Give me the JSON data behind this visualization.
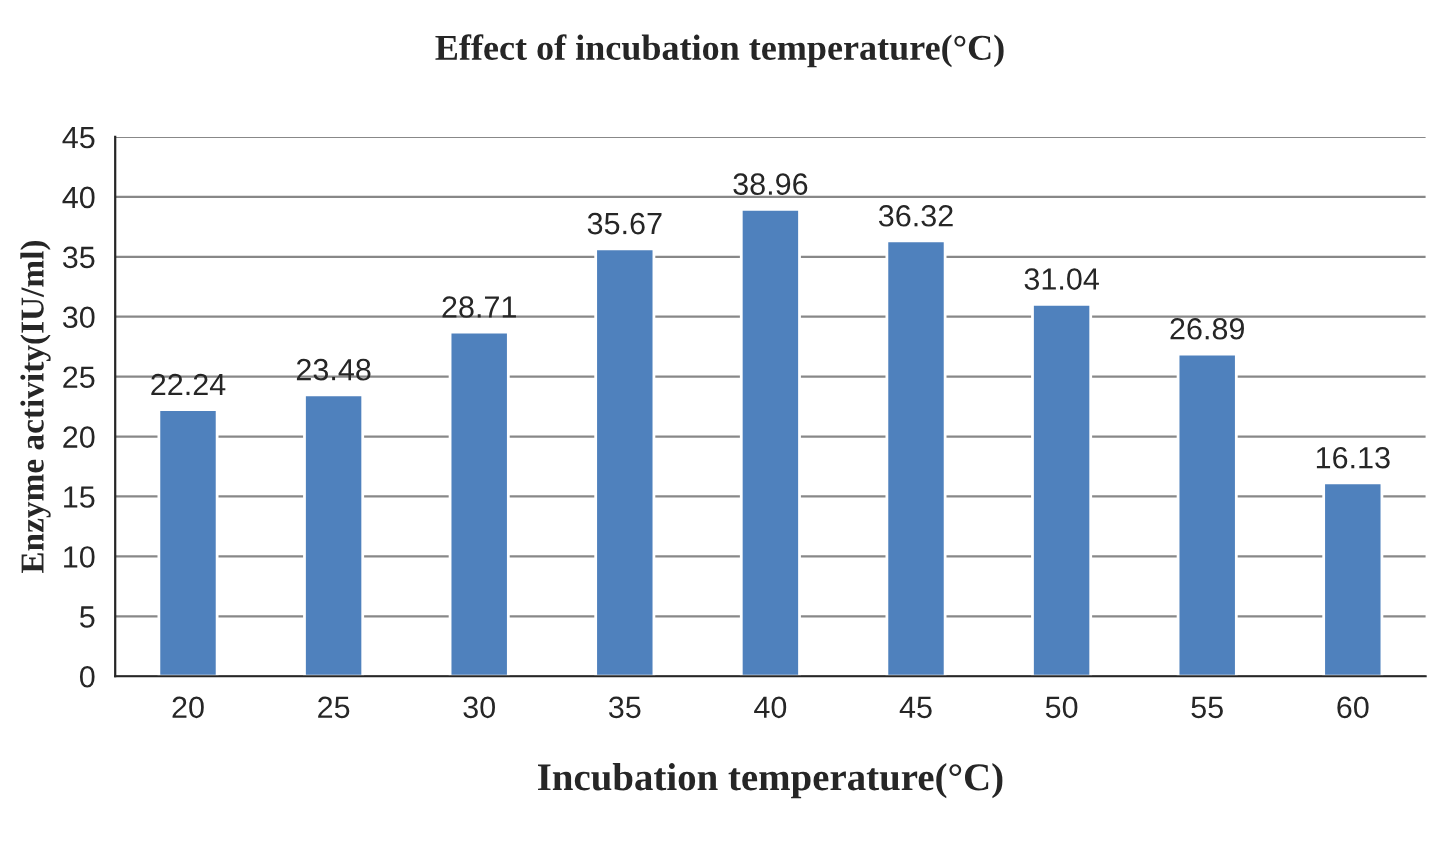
{
  "chart_data": {
    "type": "bar",
    "title": "Effect of incubation temperature(°C)",
    "xlabel": "Incubation temperature(°C)",
    "ylabel": "Enzyme activity(IU/ml)",
    "categories": [
      "20",
      "25",
      "30",
      "35",
      "40",
      "45",
      "50",
      "55",
      "60"
    ],
    "values": [
      22.24,
      23.48,
      28.71,
      35.67,
      38.96,
      36.32,
      31.04,
      26.89,
      16.13
    ],
    "color": "#4f81bd",
    "ylim": [
      0,
      45
    ],
    "yticks": [
      0,
      5,
      10,
      15,
      20,
      25,
      30,
      35,
      40,
      45
    ],
    "grid": "y",
    "data_labels": true
  }
}
